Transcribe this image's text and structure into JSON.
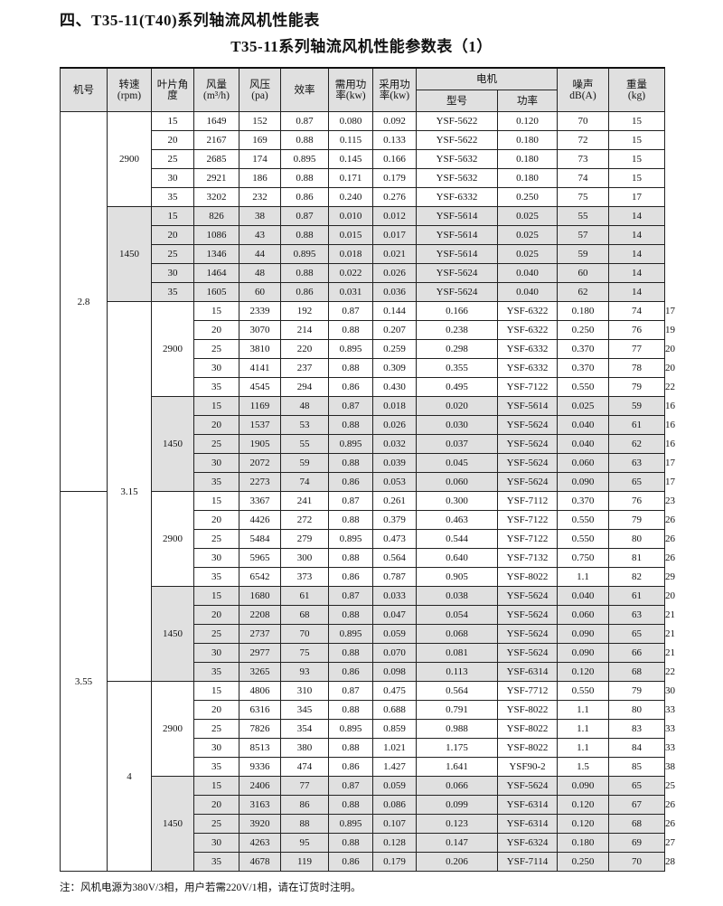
{
  "title": "四、T35-11(T40)系列轴流风机性能表",
  "subtitle": "T35-11系列轴流风机性能参数表（1）",
  "headers": {
    "model": "机号",
    "speed": "转速",
    "speed_unit": "(rpm)",
    "angle": "叶片角",
    "angle2": "度",
    "flow": "风量",
    "flow_unit": "(m³/h)",
    "pressure": "风压",
    "pressure_unit": "(pa)",
    "efficiency": "效率",
    "req_power": "需用功",
    "req_power2": "率(kw)",
    "used_power": "采用功",
    "used_power2": "率(kw)",
    "motor": "电机",
    "motor_type": "型号",
    "motor_power": "功率",
    "noise": "噪声",
    "noise_unit": "dB(A)",
    "weight": "重量",
    "weight_unit": "(kg)"
  },
  "groups": [
    {
      "model": "2.8",
      "speeds": [
        {
          "rpm": "2900",
          "rows": [
            [
              "15",
              "1649",
              "152",
              "0.87",
              "0.080",
              "0.092",
              "YSF-5622",
              "0.120",
              "70",
              "15"
            ],
            [
              "20",
              "2167",
              "169",
              "0.88",
              "0.115",
              "0.133",
              "YSF-5622",
              "0.180",
              "72",
              "15"
            ],
            [
              "25",
              "2685",
              "174",
              "0.895",
              "0.145",
              "0.166",
              "YSF-5632",
              "0.180",
              "73",
              "15"
            ],
            [
              "30",
              "2921",
              "186",
              "0.88",
              "0.171",
              "0.179",
              "YSF-5632",
              "0.180",
              "74",
              "15"
            ],
            [
              "35",
              "3202",
              "232",
              "0.86",
              "0.240",
              "0.276",
              "YSF-6332",
              "0.250",
              "75",
              "17"
            ]
          ]
        },
        {
          "rpm": "1450",
          "rows": [
            [
              "15",
              "826",
              "38",
              "0.87",
              "0.010",
              "0.012",
              "YSF-5614",
              "0.025",
              "55",
              "14"
            ],
            [
              "20",
              "1086",
              "43",
              "0.88",
              "0.015",
              "0.017",
              "YSF-5614",
              "0.025",
              "57",
              "14"
            ],
            [
              "25",
              "1346",
              "44",
              "0.895",
              "0.018",
              "0.021",
              "YSF-5614",
              "0.025",
              "59",
              "14"
            ],
            [
              "30",
              "1464",
              "48",
              "0.88",
              "0.022",
              "0.026",
              "YSF-5624",
              "0.040",
              "60",
              "14"
            ],
            [
              "35",
              "1605",
              "60",
              "0.86",
              "0.031",
              "0.036",
              "YSF-5624",
              "0.040",
              "62",
              "14"
            ]
          ]
        }
      ]
    },
    {
      "model": "3.15",
      "speeds": [
        {
          "rpm": "2900",
          "rows": [
            [
              "15",
              "2339",
              "192",
              "0.87",
              "0.144",
              "0.166",
              "YSF-6322",
              "0.180",
              "74",
              "17"
            ],
            [
              "20",
              "3070",
              "214",
              "0.88",
              "0.207",
              "0.238",
              "YSF-6322",
              "0.250",
              "76",
              "19"
            ],
            [
              "25",
              "3810",
              "220",
              "0.895",
              "0.259",
              "0.298",
              "YSF-6332",
              "0.370",
              "77",
              "20"
            ],
            [
              "30",
              "4141",
              "237",
              "0.88",
              "0.309",
              "0.355",
              "YSF-6332",
              "0.370",
              "78",
              "20"
            ],
            [
              "35",
              "4545",
              "294",
              "0.86",
              "0.430",
              "0.495",
              "YSF-7122",
              "0.550",
              "79",
              "22"
            ]
          ]
        },
        {
          "rpm": "1450",
          "rows": [
            [
              "15",
              "1169",
              "48",
              "0.87",
              "0.018",
              "0.020",
              "YSF-5614",
              "0.025",
              "59",
              "16"
            ],
            [
              "20",
              "1537",
              "53",
              "0.88",
              "0.026",
              "0.030",
              "YSF-5624",
              "0.040",
              "61",
              "16"
            ],
            [
              "25",
              "1905",
              "55",
              "0.895",
              "0.032",
              "0.037",
              "YSF-5624",
              "0.040",
              "62",
              "16"
            ],
            [
              "30",
              "2072",
              "59",
              "0.88",
              "0.039",
              "0.045",
              "YSF-5624",
              "0.060",
              "63",
              "17"
            ],
            [
              "35",
              "2273",
              "74",
              "0.86",
              "0.053",
              "0.060",
              "YSF-5624",
              "0.090",
              "65",
              "17"
            ]
          ]
        }
      ]
    },
    {
      "model": "3.55",
      "speeds": [
        {
          "rpm": "2900",
          "rows": [
            [
              "15",
              "3367",
              "241",
              "0.87",
              "0.261",
              "0.300",
              "YSF-7112",
              "0.370",
              "76",
              "23"
            ],
            [
              "20",
              "4426",
              "272",
              "0.88",
              "0.379",
              "0.463",
              "YSF-7122",
              "0.550",
              "79",
              "26"
            ],
            [
              "25",
              "5484",
              "279",
              "0.895",
              "0.473",
              "0.544",
              "YSF-7122",
              "0.550",
              "80",
              "26"
            ],
            [
              "30",
              "5965",
              "300",
              "0.88",
              "0.564",
              "0.640",
              "YSF-7132",
              "0.750",
              "81",
              "26"
            ],
            [
              "35",
              "6542",
              "373",
              "0.86",
              "0.787",
              "0.905",
              "YSF-8022",
              "1.1",
              "82",
              "29"
            ]
          ]
        },
        {
          "rpm": "1450",
          "rows": [
            [
              "15",
              "1680",
              "61",
              "0.87",
              "0.033",
              "0.038",
              "YSF-5624",
              "0.040",
              "61",
              "20"
            ],
            [
              "20",
              "2208",
              "68",
              "0.88",
              "0.047",
              "0.054",
              "YSF-5624",
              "0.060",
              "63",
              "21"
            ],
            [
              "25",
              "2737",
              "70",
              "0.895",
              "0.059",
              "0.068",
              "YSF-5624",
              "0.090",
              "65",
              "21"
            ],
            [
              "30",
              "2977",
              "75",
              "0.88",
              "0.070",
              "0.081",
              "YSF-5624",
              "0.090",
              "66",
              "21"
            ],
            [
              "35",
              "3265",
              "93",
              "0.86",
              "0.098",
              "0.113",
              "YSF-6314",
              "0.120",
              "68",
              "22"
            ]
          ]
        }
      ]
    },
    {
      "model": "4",
      "speeds": [
        {
          "rpm": "2900",
          "rows": [
            [
              "15",
              "4806",
              "310",
              "0.87",
              "0.475",
              "0.564",
              "YSF-7712",
              "0.550",
              "79",
              "30"
            ],
            [
              "20",
              "6316",
              "345",
              "0.88",
              "0.688",
              "0.791",
              "YSF-8022",
              "1.1",
              "80",
              "33"
            ],
            [
              "25",
              "7826",
              "354",
              "0.895",
              "0.859",
              "0.988",
              "YSF-8022",
              "1.1",
              "83",
              "33"
            ],
            [
              "30",
              "8513",
              "380",
              "0.88",
              "1.021",
              "1.175",
              "YSF-8022",
              "1.1",
              "84",
              "33"
            ],
            [
              "35",
              "9336",
              "474",
              "0.86",
              "1.427",
              "1.641",
              "YSF90-2",
              "1.5",
              "85",
              "38"
            ]
          ]
        },
        {
          "rpm": "1450",
          "rows": [
            [
              "15",
              "2406",
              "77",
              "0.87",
              "0.059",
              "0.066",
              "YSF-5624",
              "0.090",
              "65",
              "25"
            ],
            [
              "20",
              "3163",
              "86",
              "0.88",
              "0.086",
              "0.099",
              "YSF-6314",
              "0.120",
              "67",
              "26"
            ],
            [
              "25",
              "3920",
              "88",
              "0.895",
              "0.107",
              "0.123",
              "YSF-6314",
              "0.120",
              "68",
              "26"
            ],
            [
              "30",
              "4263",
              "95",
              "0.88",
              "0.128",
              "0.147",
              "YSF-6324",
              "0.180",
              "69",
              "27"
            ],
            [
              "35",
              "4678",
              "119",
              "0.86",
              "0.179",
              "0.206",
              "YSF-7114",
              "0.250",
              "70",
              "28"
            ]
          ]
        }
      ]
    }
  ],
  "note": "注：风机电源为380V/3相，用户若需220V/1相，请在订货时注明。"
}
